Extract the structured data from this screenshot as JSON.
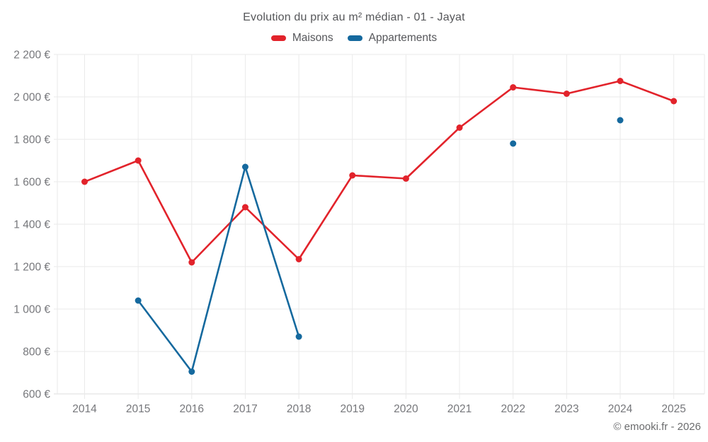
{
  "header": {
    "title": "Evolution du prix au m² médian - 01 - Jayat"
  },
  "footer": {
    "attribution": "© emooki.fr - 2026"
  },
  "chart_data": {
    "type": "line",
    "title": "Evolution du prix au m² médian - 01 - Jayat",
    "x": [
      "2014",
      "2015",
      "2016",
      "2017",
      "2018",
      "2019",
      "2020",
      "2021",
      "2022",
      "2023",
      "2024",
      "2025"
    ],
    "x_tick_labels": [
      "2014",
      "2015",
      "2016",
      "2017",
      "2018",
      "2019",
      "2020",
      "2021",
      "2022",
      "2023",
      "2024",
      "2025"
    ],
    "series": [
      {
        "name": "Maisons",
        "color": "#e2232b",
        "values": [
          1600,
          1700,
          1220,
          1480,
          1235,
          1630,
          1615,
          1855,
          2045,
          2015,
          2075,
          1980
        ]
      },
      {
        "name": "Appartements",
        "color": "#15699e",
        "values": [
          null,
          1040,
          705,
          1670,
          870,
          null,
          null,
          null,
          1780,
          null,
          1890,
          null
        ]
      }
    ],
    "xlabel": "",
    "ylabel": "",
    "ylim": [
      600,
      2200
    ],
    "y_tick_step": 200,
    "y_tick_labels": [
      "600 €",
      "800 €",
      "1 000 €",
      "1 200 €",
      "1 400 €",
      "1 600 €",
      "1 800 €",
      "2 000 €",
      "2 200 €"
    ],
    "grid": true,
    "legend_position": "top",
    "marker": "circle"
  }
}
